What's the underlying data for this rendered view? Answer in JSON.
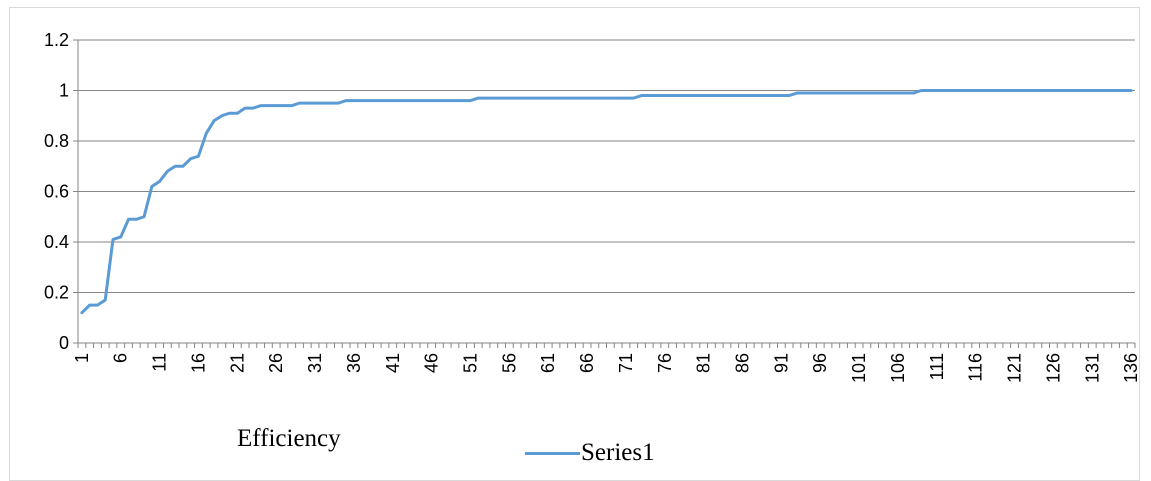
{
  "chart_data": {
    "type": "line",
    "x_start": 1,
    "x_end": 136,
    "x_tick_labels": [
      "1",
      "6",
      "11",
      "16",
      "21",
      "26",
      "31",
      "36",
      "41",
      "46",
      "51",
      "56",
      "61",
      "66",
      "71",
      "76",
      "81",
      "86",
      "91",
      "96",
      "101",
      "106",
      "111",
      "116",
      "121",
      "126",
      "131",
      "136"
    ],
    "ylim": [
      0,
      1.2
    ],
    "y_tick_labels": [
      "0",
      "0.2",
      "0.4",
      "0.6",
      "0.8",
      "1",
      "1.2"
    ],
    "grid": "horizontal",
    "annotation": "Efficiency",
    "legend_position": "bottom",
    "series": [
      {
        "name": "Series1",
        "color": "#5B9BD5",
        "points": [
          [
            1,
            0.12
          ],
          [
            2,
            0.15
          ],
          [
            3,
            0.15
          ],
          [
            4,
            0.17
          ],
          [
            5,
            0.41
          ],
          [
            6,
            0.42
          ],
          [
            7,
            0.49
          ],
          [
            8,
            0.49
          ],
          [
            9,
            0.5
          ],
          [
            10,
            0.62
          ],
          [
            11,
            0.64
          ],
          [
            12,
            0.68
          ],
          [
            13,
            0.7
          ],
          [
            14,
            0.7
          ],
          [
            15,
            0.73
          ],
          [
            16,
            0.74
          ],
          [
            17,
            0.83
          ],
          [
            18,
            0.88
          ],
          [
            19,
            0.9
          ],
          [
            20,
            0.91
          ],
          [
            21,
            0.91
          ],
          [
            22,
            0.93
          ],
          [
            23,
            0.93
          ],
          [
            24,
            0.94
          ],
          [
            28,
            0.94
          ],
          [
            29,
            0.95
          ],
          [
            34,
            0.95
          ],
          [
            35,
            0.96
          ],
          [
            51,
            0.96
          ],
          [
            52,
            0.97
          ],
          [
            72,
            0.97
          ],
          [
            73,
            0.98
          ],
          [
            92,
            0.98
          ],
          [
            93,
            0.99
          ],
          [
            108,
            0.99
          ],
          [
            109,
            1.0
          ],
          [
            136,
            1.0
          ]
        ]
      }
    ]
  }
}
